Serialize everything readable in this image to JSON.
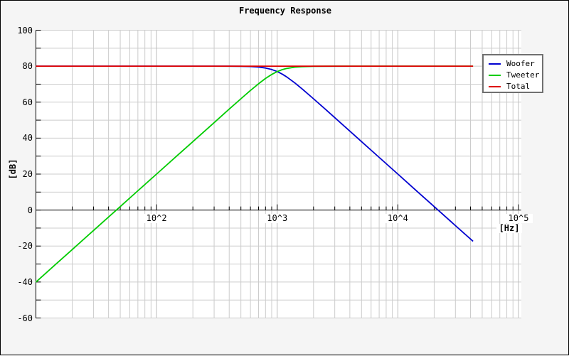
{
  "window": {
    "background_color": "#f5f5f5",
    "border_color": "#000000",
    "plot_background_color": "#ffffff",
    "grid_color": "#cccccc",
    "decade_grid_color": "#bdbdbd",
    "axis_color": "#000000"
  },
  "chart_data": {
    "type": "line",
    "title": "Frequency Response",
    "xlabel": "[Hz]",
    "ylabel": "[dB]",
    "x_scale": "log",
    "x_range_hz": [
      10,
      100000
    ],
    "y_range_db": [
      -60,
      100
    ],
    "y_tick_step_db": 10,
    "grid": true,
    "y_tick_labels": [
      "100",
      "80",
      "60",
      "40",
      "20",
      "0",
      "-20",
      "-40",
      "-60"
    ],
    "x_tick_labels": [
      {
        "text": "10^2",
        "hz": 100
      },
      {
        "text": "10^3",
        "hz": 1000
      },
      {
        "text": "10^4",
        "hz": 10000
      },
      {
        "text": "10^5",
        "hz": 100000
      }
    ],
    "legend_position": "top-right",
    "legend": [
      {
        "label": "Woofer",
        "color": "#0000d0"
      },
      {
        "label": "Tweeter",
        "color": "#00cc00"
      },
      {
        "label": "Total",
        "color": "#dd0000"
      }
    ],
    "series": [
      {
        "name": "Woofer",
        "color": "#0000d0",
        "points": [
          [
            10,
            80
          ],
          [
            100,
            80
          ],
          [
            200,
            80
          ],
          [
            300,
            80
          ],
          [
            400,
            79.98
          ],
          [
            500,
            79.93
          ],
          [
            600,
            79.8
          ],
          [
            700,
            79.52
          ],
          [
            800,
            78.99
          ],
          [
            900,
            78.15
          ],
          [
            1000,
            76.99
          ],
          [
            1100,
            75.57
          ],
          [
            1200,
            73.99
          ],
          [
            1400,
            70.69
          ],
          [
            1600,
            67.5
          ],
          [
            2000,
            61.87
          ],
          [
            2500,
            56.11
          ],
          [
            3000,
            51.37
          ],
          [
            4000,
            43.88
          ],
          [
            5000,
            38.06
          ],
          [
            7000,
            29.29
          ],
          [
            10000,
            20
          ],
          [
            15000,
            9.43
          ],
          [
            20000,
            1.94
          ],
          [
            30000,
            -8.63
          ],
          [
            42000,
            -17.37
          ]
        ]
      },
      {
        "name": "Tweeter",
        "color": "#00cc00",
        "points": [
          [
            10,
            -40
          ],
          [
            15,
            -29.43
          ],
          [
            20,
            -21.94
          ],
          [
            30,
            -11.38
          ],
          [
            40,
            -3.87
          ],
          [
            50,
            1.94
          ],
          [
            70,
            10.71
          ],
          [
            100,
            20
          ],
          [
            150,
            30.57
          ],
          [
            200,
            38.06
          ],
          [
            300,
            48.62
          ],
          [
            400,
            56.11
          ],
          [
            500,
            61.87
          ],
          [
            600,
            66.49
          ],
          [
            700,
            70.22
          ],
          [
            800,
            73.17
          ],
          [
            900,
            75.4
          ],
          [
            1000,
            76.99
          ],
          [
            1100,
            78.06
          ],
          [
            1200,
            78.75
          ],
          [
            1400,
            79.46
          ],
          [
            1600,
            79.75
          ],
          [
            2000,
            79.93
          ],
          [
            3000,
            79.99
          ],
          [
            5000,
            80
          ],
          [
            10000,
            80
          ],
          [
            20000,
            80
          ],
          [
            42000,
            80
          ]
        ]
      },
      {
        "name": "Total",
        "color": "#dd0000",
        "points": [
          [
            10,
            80
          ],
          [
            42000,
            80
          ]
        ]
      }
    ]
  }
}
